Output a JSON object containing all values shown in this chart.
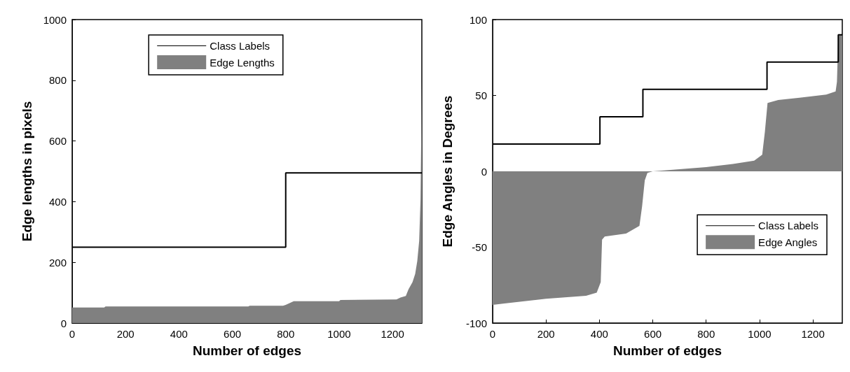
{
  "chart_data": [
    {
      "type": "area",
      "xlabel": "Number of edges",
      "ylabel": "Edge lengths in pixels",
      "xlim": [
        0,
        1310
      ],
      "xticks": [
        0,
        200,
        400,
        600,
        800,
        1000,
        1200
      ],
      "ylim": [
        0,
        1000
      ],
      "yticks": [
        0,
        200,
        400,
        600,
        800,
        1000
      ],
      "grid": false,
      "legend": "top",
      "series": [
        {
          "name": "Class Labels",
          "type": "step",
          "color": "#000000",
          "x": [
            0,
            800,
            1310
          ],
          "values": [
            250,
            495,
            495
          ]
        },
        {
          "name": "Edge Lengths",
          "color": "#808080",
          "x": [
            0,
            5,
            120,
            125,
            660,
            665,
            790,
            800,
            830,
            1000,
            1005,
            1215,
            1230,
            1250,
            1260,
            1275,
            1285,
            1293,
            1300,
            1305,
            1310
          ],
          "values": [
            51,
            51,
            51,
            55,
            55,
            57,
            57,
            60,
            72,
            72,
            76,
            78,
            84,
            89,
            111,
            135,
            162,
            205,
            271,
            407,
            800
          ]
        }
      ]
    },
    {
      "type": "area",
      "xlabel": "Number of edges",
      "ylabel": "Edge Angles in Degrees",
      "xlim": [
        0,
        1310
      ],
      "xticks": [
        0,
        200,
        400,
        600,
        800,
        1000,
        1200
      ],
      "ylim": [
        -100,
        100
      ],
      "yticks": [
        -100,
        -50,
        0,
        50,
        100
      ],
      "grid": false,
      "legend": "right",
      "series": [
        {
          "name": "Class Labels",
          "type": "step",
          "color": "#000000",
          "x": [
            0,
            402,
            563,
            1028,
            1295,
            1310
          ],
          "values": [
            18,
            36,
            54,
            72,
            90,
            90
          ]
        },
        {
          "name": "Edge Angles",
          "color": "#808080",
          "x": [
            0,
            50,
            200,
            350,
            390,
            405,
            410,
            420,
            500,
            550,
            560,
            570,
            580,
            600,
            700,
            800,
            900,
            980,
            1010,
            1020,
            1030,
            1070,
            1150,
            1250,
            1285,
            1290,
            1295,
            1310
          ],
          "values": [
            -88,
            -87,
            -84,
            -82,
            -80,
            -73,
            -45,
            -43,
            -41,
            -36,
            -23,
            -6,
            -1,
            0,
            1.4,
            2.8,
            4.8,
            7,
            11,
            26,
            45,
            47,
            48.5,
            50.6,
            52.6,
            59,
            89.5,
            90
          ]
        }
      ]
    }
  ]
}
